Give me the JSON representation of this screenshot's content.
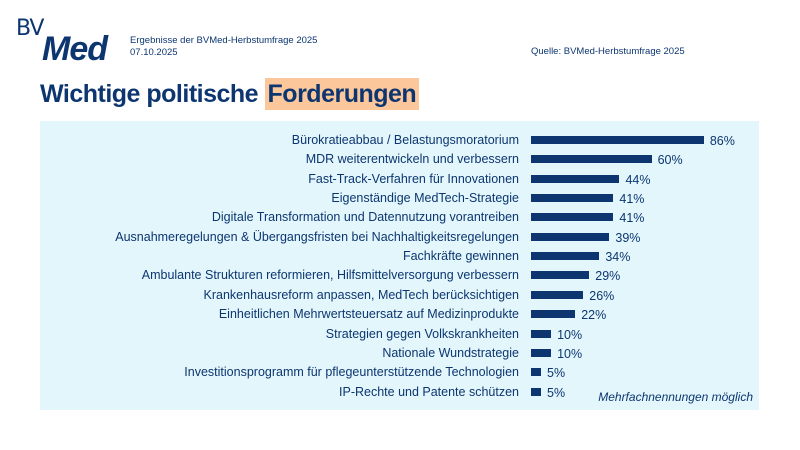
{
  "header": {
    "logo_text": "BVMed",
    "subtitle": "Ergebnisse der BVMed-Herbstumfrage 2025",
    "date": "07.10.2025",
    "source": "Quelle: BVMed-Herbstumfrage  2025"
  },
  "title_part1": "Wichtige politische ",
  "title_part2": "Forderungen",
  "colors": {
    "bar": "#0d3670",
    "panel": "#e2f6fc",
    "highlight": "#fcc89b"
  },
  "chart_data": {
    "type": "bar",
    "orientation": "horizontal",
    "title": "Wichtige politische Forderungen",
    "categories": [
      "Bürokratieabbau / Belastungsmoratorium",
      "MDR weiterentwickeln und verbessern",
      "Fast-Track-Verfahren für Innovationen",
      "Eigenständige MedTech-Strategie",
      "Digitale Transformation und Datennutzung vorantreiben",
      "Ausnahmeregelungen & Übergangsfristen bei Nachhaltigkeitsregelungen",
      "Fachkräfte gewinnen",
      "Ambulante Strukturen reformieren, Hilfsmittelversorgung verbessern",
      "Krankenhausreform anpassen, MedTech berücksichtigen",
      "Einheitlichen Mehrwertsteuersatz auf Medizinprodukte",
      "Strategien gegen Volkskrankheiten",
      "Nationale Wundstrategie",
      "Investitionsprogramm für pflegeunterstützende Technologien",
      "IP-Rechte und Patente schützen"
    ],
    "values": [
      86,
      60,
      44,
      41,
      41,
      39,
      34,
      29,
      26,
      22,
      10,
      10,
      5,
      5
    ],
    "unit": "%",
    "xlim": [
      0,
      100
    ],
    "grid": false,
    "annotation": "Mehrfachnennungen möglich"
  }
}
